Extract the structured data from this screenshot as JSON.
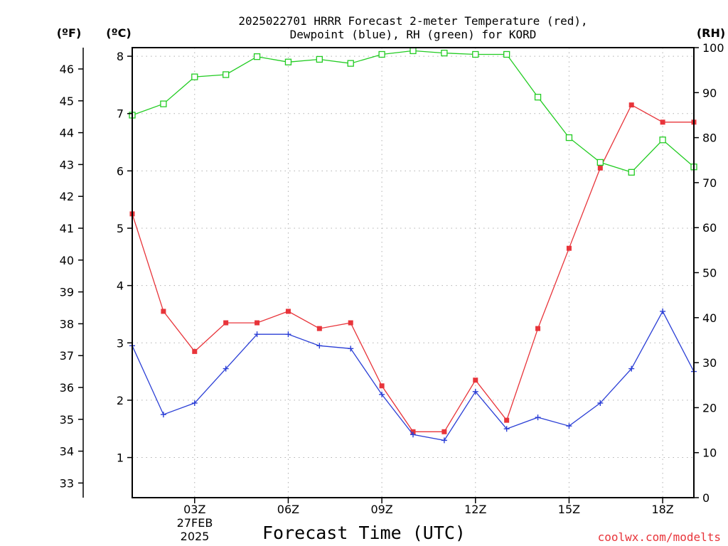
{
  "chart_data": {
    "type": "line",
    "title_line1": "2025022701 HRRR Forecast 2-meter Temperature (red),",
    "title_line2": "Dewpoint (blue), RH (green) for KORD",
    "xlabel": "Forecast Time (UTC)",
    "x_hours": [
      1,
      2,
      3,
      4,
      5,
      6,
      7,
      8,
      9,
      10,
      11,
      12,
      13,
      14,
      15,
      16,
      17,
      18,
      19
    ],
    "x_ticks": [
      {
        "hour": 3,
        "label": "03Z"
      },
      {
        "hour": 6,
        "label": "06Z"
      },
      {
        "hour": 9,
        "label": "09Z"
      },
      {
        "hour": 12,
        "label": "12Z"
      },
      {
        "hour": 15,
        "label": "15Z"
      },
      {
        "hour": 18,
        "label": "18Z"
      }
    ],
    "x_date_label_1": "27FEB",
    "x_date_label_2": "2025",
    "xlim": [
      1,
      19
    ],
    "left_axis_c": {
      "unit_label": "(ºC)",
      "lim": [
        0.3,
        8.15
      ],
      "ticks": [
        1,
        2,
        3,
        4,
        5,
        6,
        7,
        8
      ]
    },
    "left_axis_f": {
      "unit_label": "(ºF)",
      "lim": [
        32.54,
        46.67
      ],
      "ticks": [
        33,
        34,
        35,
        36,
        37,
        38,
        39,
        40,
        41,
        42,
        43,
        44,
        45,
        46
      ]
    },
    "right_axis_rh": {
      "unit_label": "(RH)",
      "lim": [
        0,
        100
      ],
      "ticks": [
        0,
        10,
        20,
        30,
        40,
        50,
        60,
        70,
        80,
        90,
        100
      ]
    },
    "series": [
      {
        "key": "temperature",
        "axis": "c",
        "color": "#e8343a",
        "marker": "filled-square",
        "values": [
          5.25,
          3.55,
          2.85,
          3.35,
          3.35,
          3.55,
          3.25,
          3.35,
          2.25,
          1.45,
          1.45,
          2.35,
          1.65,
          3.25,
          4.65,
          6.05,
          7.15,
          6.85,
          6.85
        ]
      },
      {
        "key": "dewpoint",
        "axis": "c",
        "color": "#2b3fd6",
        "marker": "plus",
        "values": [
          2.95,
          1.75,
          1.95,
          2.55,
          3.15,
          3.15,
          2.95,
          2.9,
          2.1,
          1.4,
          1.3,
          2.15,
          1.5,
          1.7,
          1.55,
          1.95,
          2.55,
          3.55,
          2.5
        ]
      },
      {
        "key": "rh",
        "axis": "rh",
        "color": "#22cc22",
        "marker": "open-square",
        "values": [
          85,
          87.5,
          93.5,
          94,
          98,
          96.8,
          97.4,
          96.5,
          98.5,
          99.3,
          98.8,
          98.5,
          98.5,
          89,
          80,
          74.5,
          72.3,
          79.5,
          73.5
        ]
      }
    ],
    "grid": true,
    "credit": "coolwx.com/modelts"
  }
}
